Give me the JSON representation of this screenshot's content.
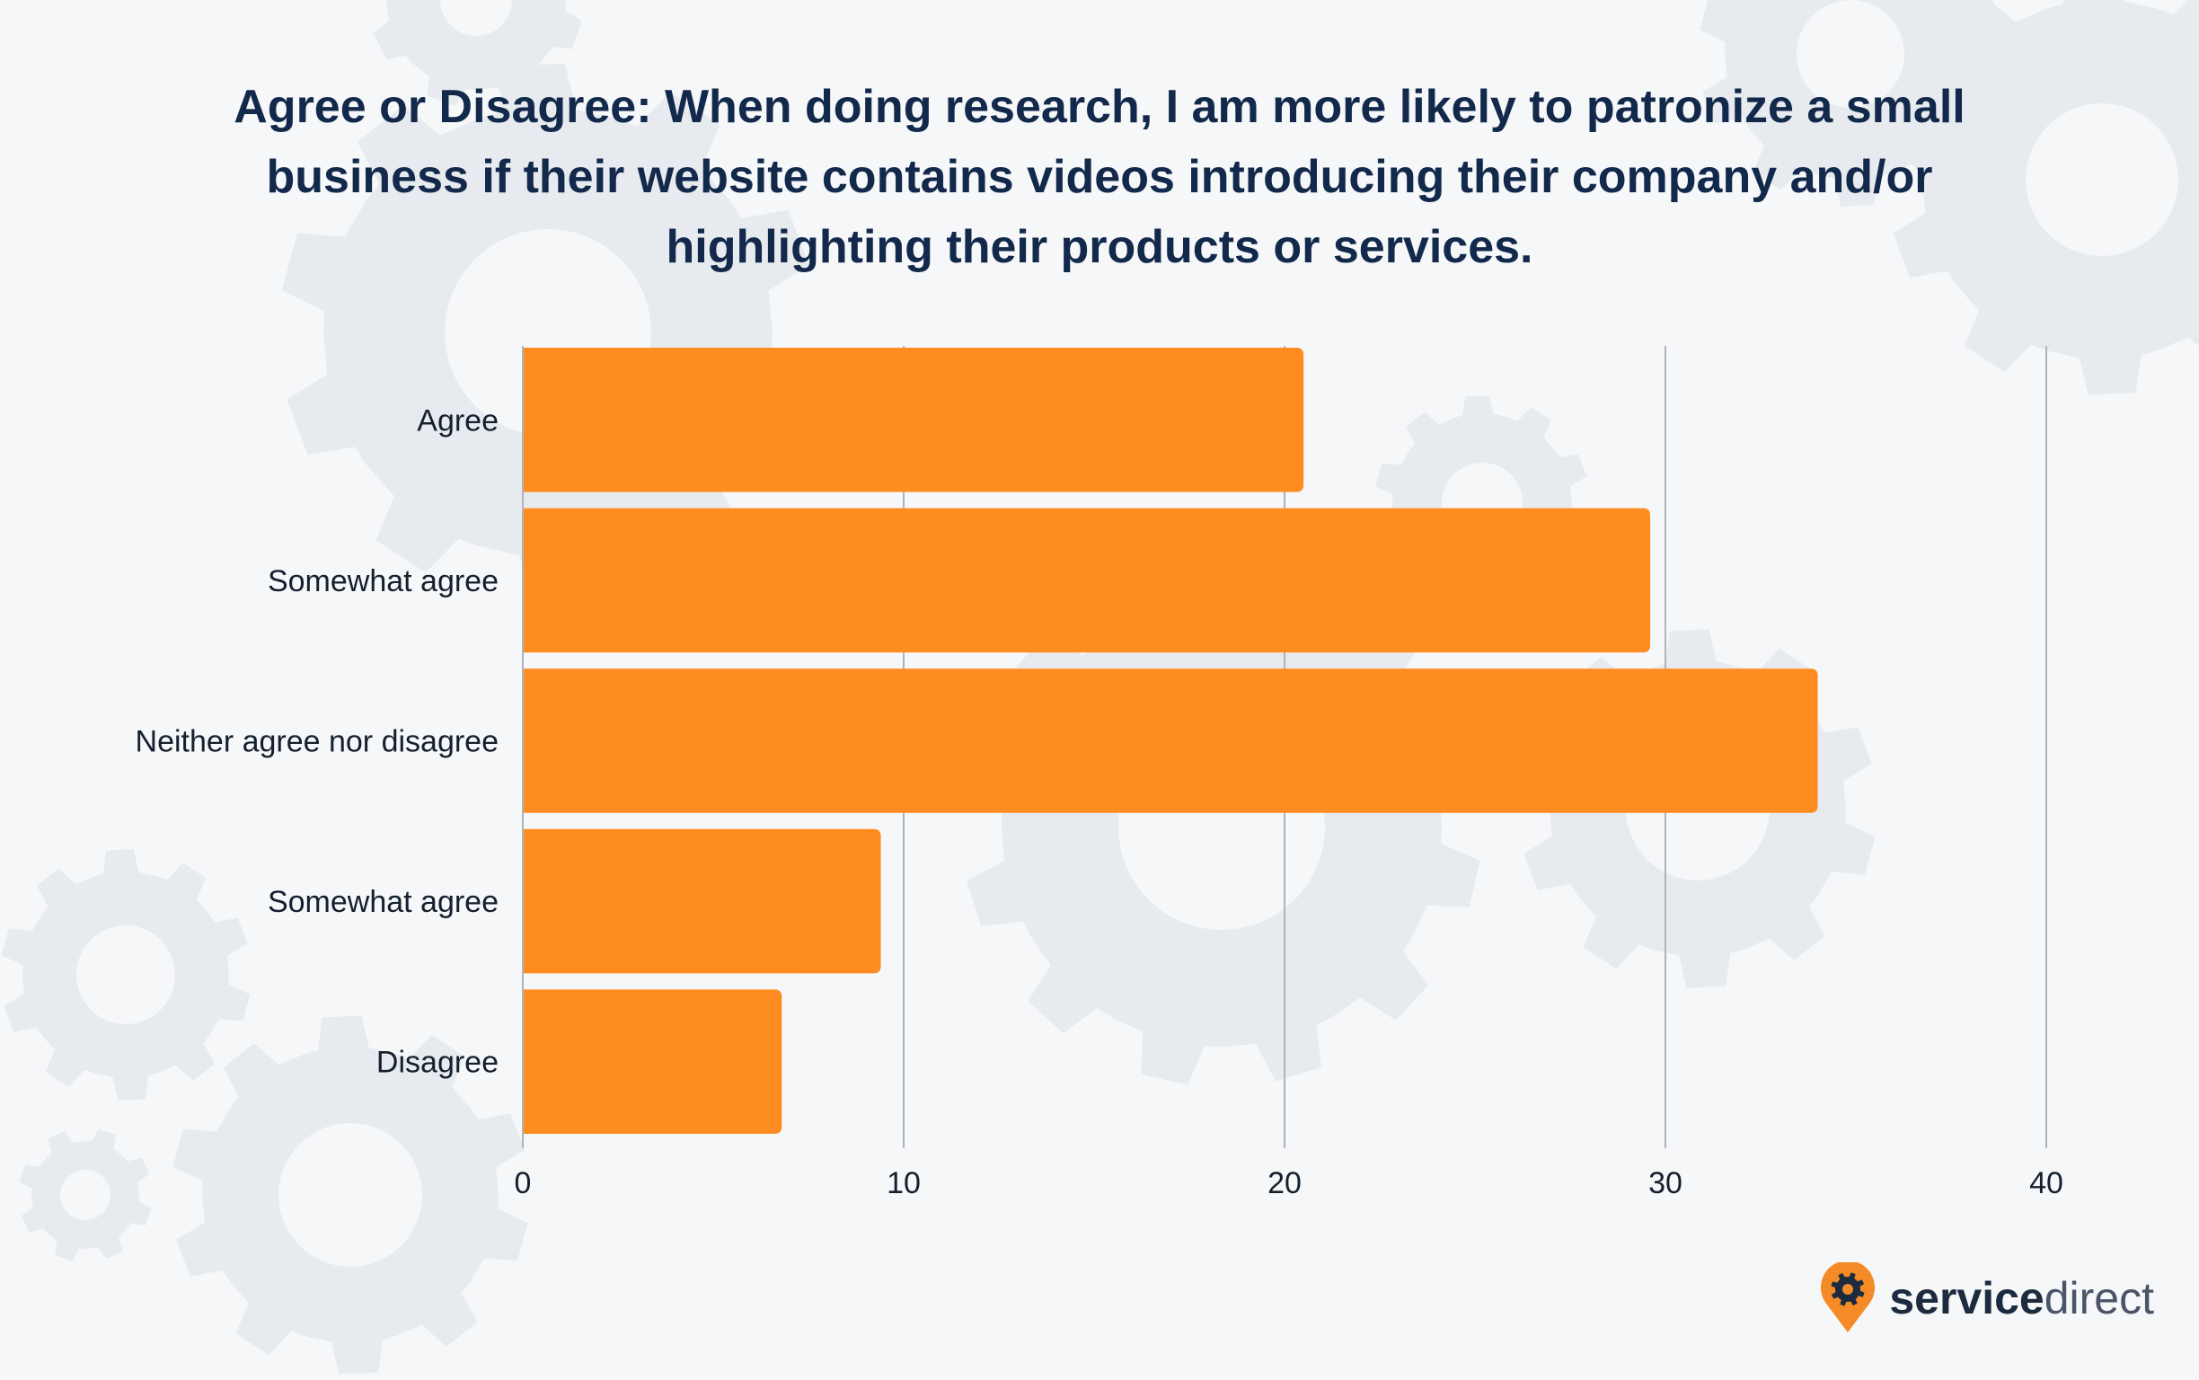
{
  "chart_data": {
    "type": "bar",
    "orientation": "horizontal",
    "title": "Agree or Disagree: When doing research, I am more likely to patronize a small business if their website contains videos introducing their company and/or highlighting their products or services.",
    "categories": [
      "Agree",
      "Somewhat agree",
      "Neither agree nor disagree",
      "Somewhat agree",
      "Disagree"
    ],
    "values": [
      20.5,
      29.6,
      34.0,
      9.4,
      6.8
    ],
    "xlim": [
      0,
      40
    ],
    "xticks": [
      0,
      10,
      20,
      30,
      40
    ],
    "grid": true,
    "bar_color": "#ff8c21",
    "grid_color": "#b0b4b9"
  },
  "logo": {
    "part1": "service",
    "part2": "direct",
    "accent": "#f48b27",
    "dark": "#1d2b3f"
  },
  "background": "#f5f7f9"
}
